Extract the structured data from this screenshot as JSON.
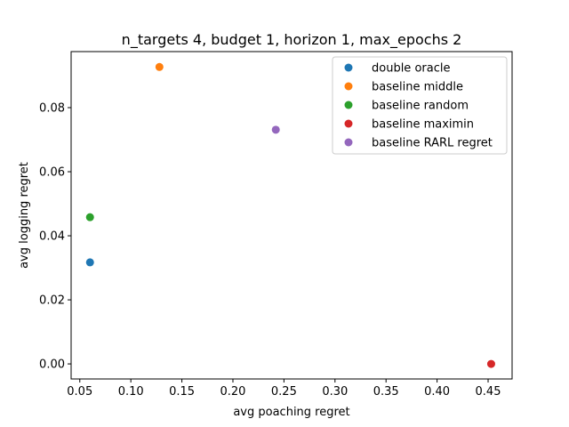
{
  "chart_data": {
    "type": "scatter",
    "title": "n_targets 4, budget 1, horizon 1, max_epochs 2",
    "xlabel": "avg poaching regret",
    "ylabel": "avg logging regret",
    "xlim": [
      0.0415,
      0.4735
    ],
    "ylim": [
      -0.0047,
      0.0975
    ],
    "xticks": [
      0.05,
      0.1,
      0.15,
      0.2,
      0.25,
      0.3,
      0.35,
      0.4,
      0.45
    ],
    "xtick_labels": [
      "0.05",
      "0.10",
      "0.15",
      "0.20",
      "0.25",
      "0.30",
      "0.35",
      "0.40",
      "0.45"
    ],
    "yticks": [
      0.0,
      0.02,
      0.04,
      0.06,
      0.08
    ],
    "ytick_labels": [
      "0.00",
      "0.02",
      "0.04",
      "0.06",
      "0.08"
    ],
    "grid": false,
    "legend_position": "top-right",
    "series": [
      {
        "name": "double oracle",
        "color": "#1f77b4",
        "x": 0.06,
        "y": 0.0317
      },
      {
        "name": "baseline middle",
        "color": "#ff7f0e",
        "x": 0.128,
        "y": 0.0927
      },
      {
        "name": "baseline random",
        "color": "#2ca02c",
        "x": 0.06,
        "y": 0.0458
      },
      {
        "name": "baseline maximin",
        "color": "#d62728",
        "x": 0.453,
        "y": 0.0
      },
      {
        "name": "baseline RARL regret",
        "color": "#9467bd",
        "x": 0.242,
        "y": 0.0731
      }
    ]
  }
}
